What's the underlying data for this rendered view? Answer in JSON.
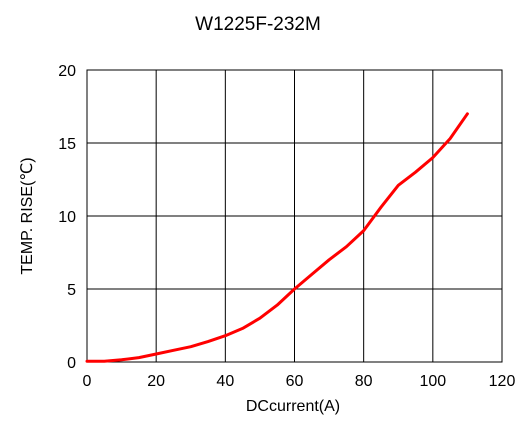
{
  "chart_data": {
    "type": "line",
    "title": "W1225F-232M",
    "xlabel": "DCcurrent(A)",
    "ylabel": "TEMP. RISE(℃)",
    "xlim": [
      0,
      120
    ],
    "ylim": [
      0,
      20
    ],
    "xticks": [
      0,
      20,
      40,
      60,
      80,
      100,
      120
    ],
    "yticks": [
      0,
      5,
      10,
      15,
      20
    ],
    "grid": true,
    "colors": {
      "line": "#ff0000",
      "grid": "#000000",
      "background": "#ffffff"
    },
    "series": [
      {
        "x": [
          0,
          5,
          10,
          15,
          20,
          25,
          30,
          35,
          40,
          45,
          50,
          55,
          60,
          65,
          70,
          75,
          80,
          85,
          90,
          95,
          100,
          105,
          110
        ],
        "y": [
          0.05,
          0.05,
          0.15,
          0.3,
          0.55,
          0.8,
          1.05,
          1.4,
          1.8,
          2.3,
          3.0,
          3.9,
          5.0,
          6.0,
          7.0,
          7.9,
          9.0,
          10.6,
          12.1,
          13.0,
          14.0,
          15.3,
          17.0
        ]
      }
    ]
  }
}
